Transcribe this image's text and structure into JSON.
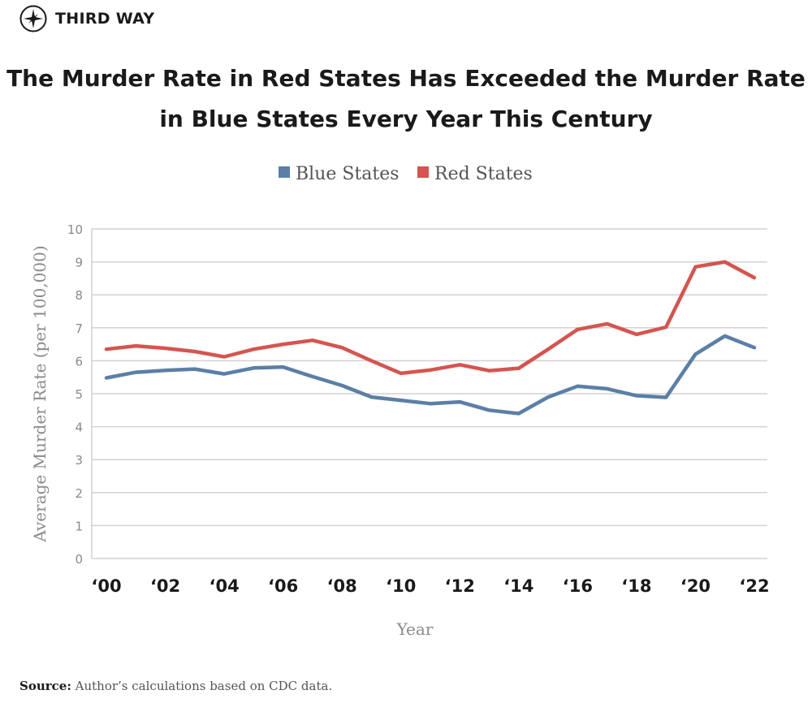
{
  "brand": {
    "name": "THIRD WAY",
    "logo_icon": "compass-star-icon"
  },
  "source": {
    "label": "Source:",
    "text": "Author’s calculations based on CDC data."
  },
  "chart_data": {
    "type": "line",
    "title": "The Murder Rate in Red States Has Exceeded the Murder Rate in Blue States Every Year This Century",
    "title_lines": [
      "The Murder Rate in Red States Has Exceeded the Murder Rate",
      "in Blue States Every Year This Century"
    ],
    "xlabel": "Year",
    "ylabel": "Average  Murder Rate (per 100,000)",
    "x": [
      2000,
      2001,
      2002,
      2003,
      2004,
      2005,
      2006,
      2007,
      2008,
      2009,
      2010,
      2011,
      2012,
      2013,
      2014,
      2015,
      2016,
      2017,
      2018,
      2019,
      2020,
      2021,
      2022
    ],
    "x_tick_values": [
      2000,
      2002,
      2004,
      2006,
      2008,
      2010,
      2012,
      2014,
      2016,
      2018,
      2020,
      2022
    ],
    "x_tick_labels": [
      "‘00",
      "‘02",
      "‘04",
      "‘06",
      "‘08",
      "‘10",
      "‘12",
      "‘14",
      "‘16",
      "‘18",
      "‘20",
      "‘22"
    ],
    "ylim": [
      0,
      10
    ],
    "y_ticks": [
      0,
      1,
      2,
      3,
      4,
      5,
      6,
      7,
      8,
      9,
      10
    ],
    "grid": true,
    "legend_position": "top-center",
    "series": [
      {
        "name": "Blue States",
        "color": "#5b7fa6",
        "values": [
          5.48,
          5.65,
          5.71,
          5.75,
          5.6,
          5.78,
          5.81,
          5.52,
          5.25,
          4.9,
          4.8,
          4.7,
          4.75,
          4.5,
          4.4,
          4.9,
          5.23,
          5.15,
          4.94,
          4.89,
          6.2,
          6.75,
          6.4
        ]
      },
      {
        "name": "Red States",
        "color": "#d45550",
        "values": [
          6.35,
          6.45,
          6.38,
          6.28,
          6.12,
          6.35,
          6.5,
          6.62,
          6.4,
          6.0,
          5.62,
          5.72,
          5.88,
          5.7,
          5.77,
          6.35,
          6.95,
          7.12,
          6.8,
          7.02,
          8.85,
          9.0,
          8.52
        ]
      }
    ]
  }
}
